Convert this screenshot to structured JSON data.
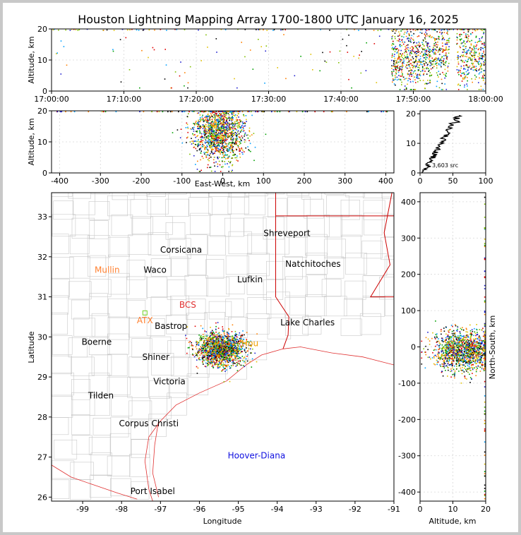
{
  "title": "Houston Lightning Mapping Array 1700-1800 UTC January 16, 2025",
  "colors": {
    "frame": "#c8c8c8",
    "counties": "#c8c8c8",
    "states": "#cc0000",
    "coast": "#e03030",
    "grid": "#c8c8c8"
  },
  "series_colors": [
    "#000000",
    "#2020d0",
    "#00a0ff",
    "#00a000",
    "#80c000",
    "#e0c000",
    "#ff8000",
    "#e00000"
  ],
  "chart_data": [
    {
      "id": "time-altitude",
      "type": "scatter",
      "ylabel": "Altitude, km",
      "x_ticks": [
        "17:00:00",
        "17:10:00",
        "17:20:00",
        "17:30:00",
        "17:40:00",
        "17:50:00",
        "18:00:00"
      ],
      "xlim": [
        "17:00:00",
        "18:00:00"
      ],
      "ylim": [
        0,
        20
      ],
      "y_ticks": [
        "0",
        "10",
        "20"
      ]
    },
    {
      "id": "ew-altitude",
      "type": "scatter",
      "xlabel": "East-West, km",
      "ylabel": "Altitude, km",
      "xlim": [
        -420,
        420
      ],
      "ylim": [
        0,
        20
      ],
      "x_ticks": [
        "-400",
        "-300",
        "-200",
        "-100",
        "0",
        "100",
        "200",
        "300",
        "400"
      ],
      "y_ticks": [
        "0",
        "10",
        "20"
      ]
    },
    {
      "id": "altitude-histogram",
      "type": "line",
      "xlim": [
        0,
        100
      ],
      "ylim": [
        0,
        21
      ],
      "x_ticks": [
        "0",
        "50",
        "100"
      ],
      "y_ticks": [
        "0",
        "10",
        "20"
      ],
      "annotation": "3,603 src"
    },
    {
      "id": "plan-view",
      "type": "scatter",
      "xlabel": "Longitude",
      "ylabel": "Latitude",
      "xlim": [
        -99.8,
        -91
      ],
      "ylim": [
        25.9,
        33.6
      ],
      "x_ticks": [
        "-99",
        "-98",
        "-97",
        "-96",
        "-95",
        "-94",
        "-93",
        "-92",
        "-91"
      ],
      "y_ticks": [
        "26",
        "27",
        "28",
        "29",
        "30",
        "31",
        "32",
        "33"
      ],
      "cities": [
        {
          "name": "Shreveport",
          "lon": -93.75,
          "lat": 32.52,
          "color": "#000000"
        },
        {
          "name": "Corsicana",
          "lon": -96.47,
          "lat": 32.1,
          "color": "#000000"
        },
        {
          "name": "Natchitoches",
          "lon": -93.08,
          "lat": 31.75,
          "color": "#000000"
        },
        {
          "name": "Mullin",
          "lon": -98.37,
          "lat": 31.6,
          "color": "#ff8030"
        },
        {
          "name": "Waco",
          "lon": -97.14,
          "lat": 31.6,
          "color": "#000000"
        },
        {
          "name": "Lufkin",
          "lon": -94.7,
          "lat": 31.36,
          "color": "#000000"
        },
        {
          "name": "BCS",
          "lon": -96.3,
          "lat": 30.73,
          "color": "#e03030"
        },
        {
          "name": "ATX",
          "lon": -97.4,
          "lat": 30.34,
          "color": "#ff8030"
        },
        {
          "name": "Bastrop",
          "lon": -96.73,
          "lat": 30.2,
          "color": "#000000"
        },
        {
          "name": "Lake Charles",
          "lon": -93.22,
          "lat": 30.29,
          "color": "#000000"
        },
        {
          "name": "Boerne",
          "lon": -98.64,
          "lat": 29.8,
          "color": "#000000"
        },
        {
          "name": "Hou",
          "lon": -94.7,
          "lat": 29.77,
          "color": "#f0a000"
        },
        {
          "name": "Shiner",
          "lon": -97.12,
          "lat": 29.42,
          "color": "#000000"
        },
        {
          "name": "Victoria",
          "lon": -96.77,
          "lat": 28.82,
          "color": "#000000"
        },
        {
          "name": "Tilden",
          "lon": -98.53,
          "lat": 28.46,
          "color": "#000000"
        },
        {
          "name": "Corpus Christi",
          "lon": -97.3,
          "lat": 27.77,
          "color": "#000000"
        },
        {
          "name": "Hoover-Diana",
          "lon": -94.53,
          "lat": 26.97,
          "color": "#1010e0"
        },
        {
          "name": "Port Isabel",
          "lon": -97.2,
          "lat": 26.08,
          "color": "#000000"
        }
      ]
    },
    {
      "id": "altitude-ns",
      "type": "scatter",
      "xlabel": "Altitude, km",
      "ylabel": "North-South, km",
      "xlim": [
        0,
        20
      ],
      "ylim": [
        -425,
        425
      ],
      "x_ticks": [
        "0",
        "10",
        "20"
      ],
      "y_ticks": [
        "-400",
        "-300",
        "-200",
        "-100",
        "0",
        "100",
        "200",
        "300",
        "400"
      ]
    }
  ]
}
